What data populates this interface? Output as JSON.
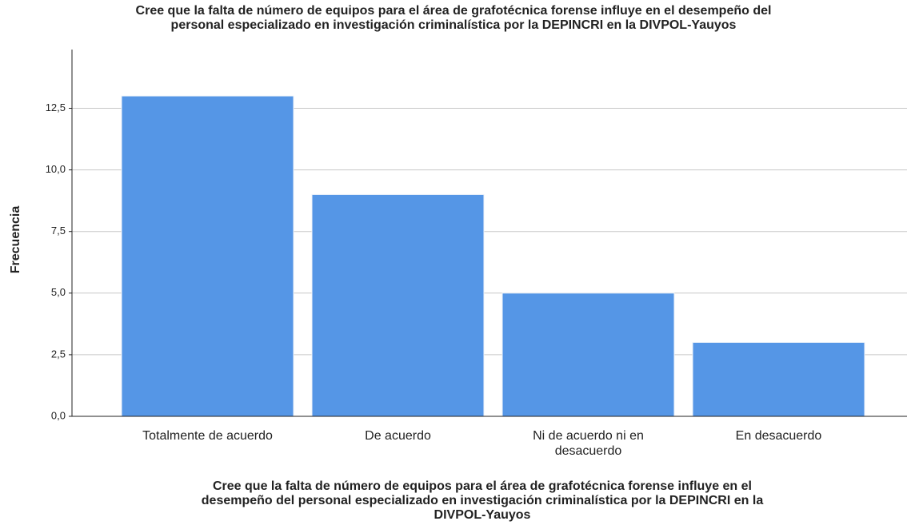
{
  "chart_data": {
    "type": "bar",
    "title": [
      "Cree que la falta de número de equipos para el área de grafotécnica forense influye en el desempeño del",
      "personal especializado en investigación criminalística por la DEPINCRI en la DIVPOL-Yauyos"
    ],
    "x_label": [
      "Cree que la falta de número de equipos para el área de grafotécnica forense influye en el",
      "desempeño del personal especializado en investigación criminalística por la DEPINCRI en la",
      "DIVPOL-Yauyos"
    ],
    "y_label": "Frecuencia",
    "categories": [
      "Totalmente de acuerdo",
      "De acuerdo",
      "Ni de acuerdo ni en desacuerdo",
      "En desacuerdo"
    ],
    "values": [
      13,
      9,
      5,
      3
    ],
    "color": "#5596e6",
    "ylim": [
      0,
      14.3
    ],
    "yticks": [
      {
        "value": 0,
        "label": "0,0"
      },
      {
        "value": 2.5,
        "label": "2,5"
      },
      {
        "value": 5,
        "label": "5,0"
      },
      {
        "value": 7.5,
        "label": "7,5"
      },
      {
        "value": 10,
        "label": "10,0"
      },
      {
        "value": 12.5,
        "label": "12,5"
      }
    ],
    "grid": true
  }
}
